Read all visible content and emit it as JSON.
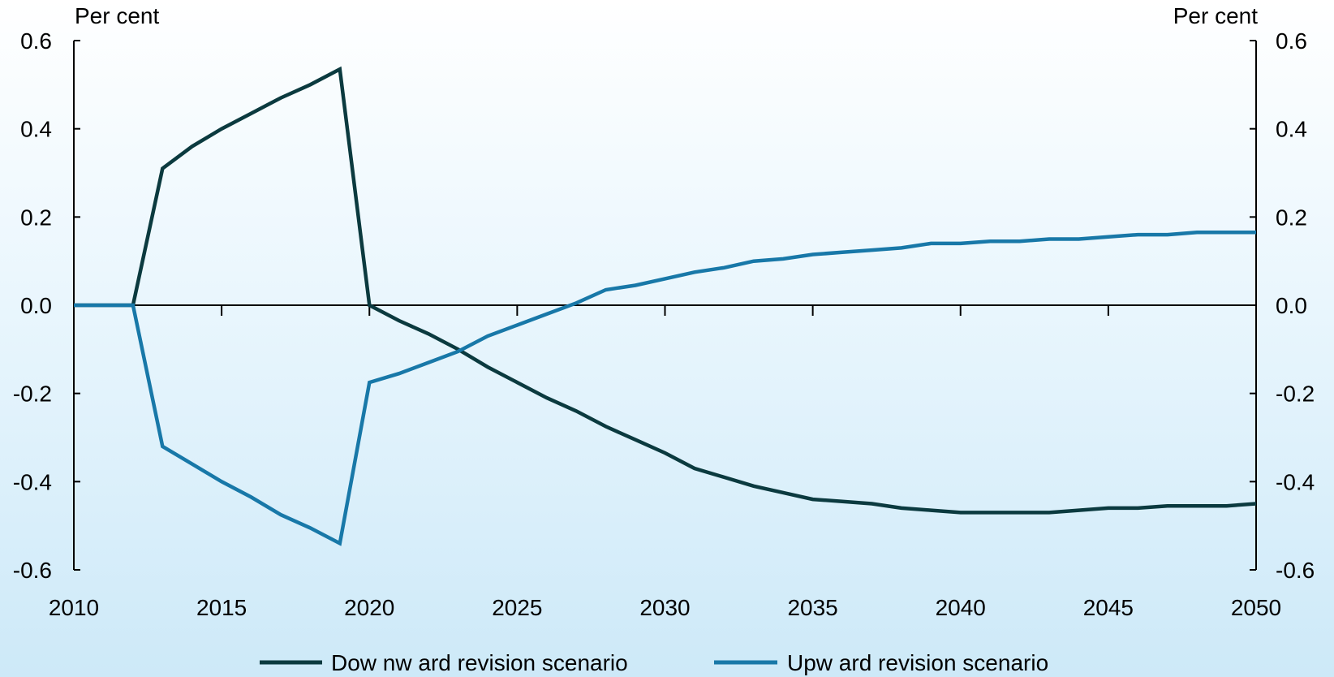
{
  "chart_data": {
    "type": "line",
    "left_axis_unit": "Per cent",
    "right_axis_unit": "Per cent",
    "xlim": [
      2010,
      2050
    ],
    "ylim": [
      -0.6,
      0.6
    ],
    "x_ticks": [
      2010,
      2015,
      2020,
      2025,
      2030,
      2035,
      2040,
      2045,
      2050
    ],
    "y_ticks": [
      "0.6",
      "0.4",
      "0.2",
      "0.0",
      "-0.2",
      "-0.4",
      "-0.6"
    ],
    "grid": false,
    "legend_position": "bottom",
    "series": [
      {
        "name": "Dow nw ard revision scenario",
        "color": "#0b3a3f",
        "x": [
          2010,
          2011,
          2012,
          2013,
          2014,
          2015,
          2016,
          2017,
          2018,
          2019,
          2020,
          2021,
          2022,
          2023,
          2024,
          2025,
          2026,
          2027,
          2028,
          2029,
          2030,
          2031,
          2032,
          2033,
          2034,
          2035,
          2036,
          2037,
          2038,
          2039,
          2040,
          2041,
          2042,
          2043,
          2044,
          2045,
          2046,
          2047,
          2048,
          2049,
          2050
        ],
        "values": [
          0,
          0,
          0,
          0.31,
          0.36,
          0.4,
          0.435,
          0.47,
          0.5,
          0.535,
          0,
          -0.035,
          -0.065,
          -0.1,
          -0.14,
          -0.175,
          -0.21,
          -0.24,
          -0.275,
          -0.305,
          -0.335,
          -0.37,
          -0.39,
          -0.41,
          -0.425,
          -0.44,
          -0.445,
          -0.45,
          -0.46,
          -0.465,
          -0.47,
          -0.47,
          -0.47,
          -0.47,
          -0.465,
          -0.46,
          -0.46,
          -0.455,
          -0.455,
          -0.455,
          -0.45
        ]
      },
      {
        "name": "Upw ard revision scenario",
        "color": "#1878a8",
        "x": [
          2010,
          2011,
          2012,
          2013,
          2014,
          2015,
          2016,
          2017,
          2018,
          2019,
          2020,
          2021,
          2022,
          2023,
          2024,
          2025,
          2026,
          2027,
          2028,
          2029,
          2030,
          2031,
          2032,
          2033,
          2034,
          2035,
          2036,
          2037,
          2038,
          2039,
          2040,
          2041,
          2042,
          2043,
          2044,
          2045,
          2046,
          2047,
          2048,
          2049,
          2050
        ],
        "values": [
          0,
          0,
          0,
          -0.32,
          -0.36,
          -0.4,
          -0.435,
          -0.475,
          -0.505,
          -0.54,
          -0.175,
          -0.155,
          -0.13,
          -0.105,
          -0.07,
          -0.045,
          -0.02,
          0.005,
          0.035,
          0.045,
          0.06,
          0.075,
          0.085,
          0.1,
          0.105,
          0.115,
          0.12,
          0.125,
          0.13,
          0.14,
          0.14,
          0.145,
          0.145,
          0.15,
          0.15,
          0.155,
          0.16,
          0.16,
          0.165,
          0.165,
          0.165
        ]
      }
    ]
  }
}
